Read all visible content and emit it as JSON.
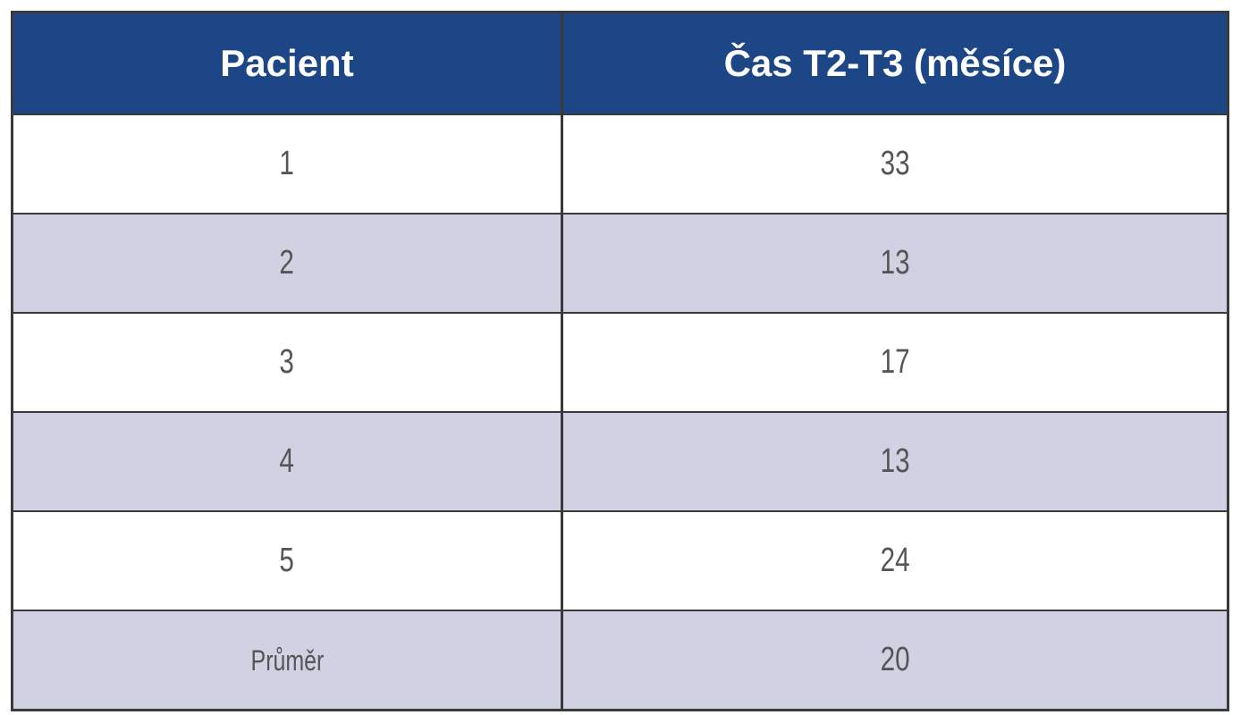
{
  "table": {
    "header": [
      "Pacient",
      "Čas T2-T3 (měsíce)"
    ],
    "rows": [
      [
        "1",
        "33"
      ],
      [
        "2",
        "13"
      ],
      [
        "3",
        "17"
      ],
      [
        "4",
        "13"
      ],
      [
        "5",
        "24"
      ],
      [
        "Průměr",
        "20"
      ]
    ]
  }
}
